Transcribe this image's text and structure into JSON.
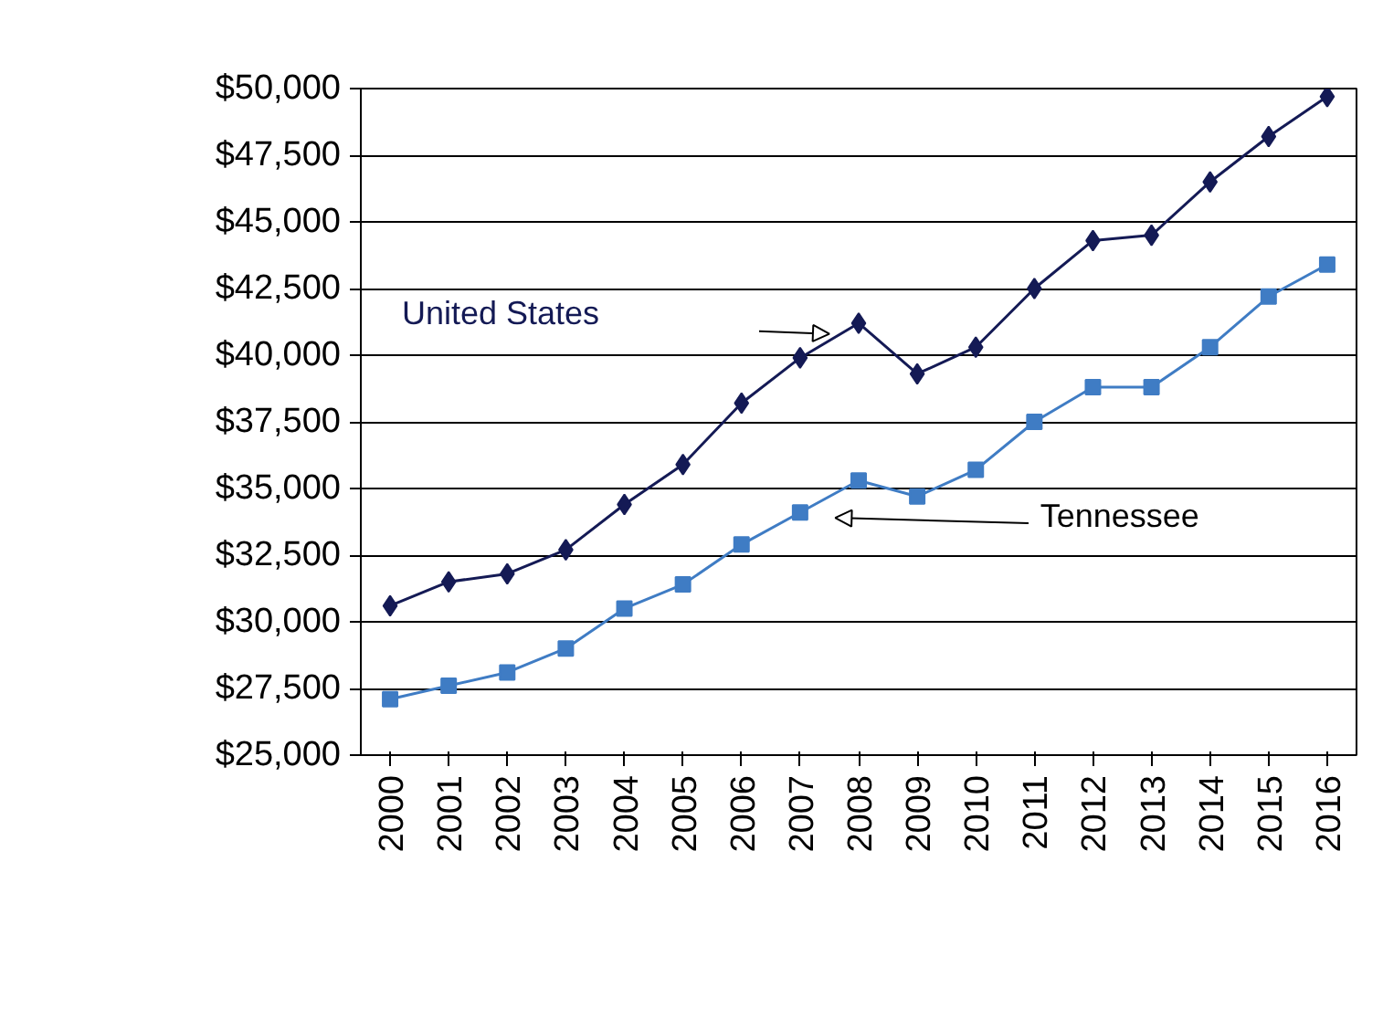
{
  "chart_data": {
    "type": "line",
    "categories": [
      "2000",
      "2001",
      "2002",
      "2003",
      "2004",
      "2005",
      "2006",
      "2007",
      "2008",
      "2009",
      "2010",
      "2011",
      "2012",
      "2013",
      "2014",
      "2015",
      "2016"
    ],
    "ylim": [
      25000,
      50000
    ],
    "yticks": [
      {
        "value": 25000,
        "label": "$25,000"
      },
      {
        "value": 27500,
        "label": "$27,500"
      },
      {
        "value": 30000,
        "label": "$30,000"
      },
      {
        "value": 32500,
        "label": "$32,500"
      },
      {
        "value": 35000,
        "label": "$35,000"
      },
      {
        "value": 37500,
        "label": "$37,500"
      },
      {
        "value": 40000,
        "label": "$40,000"
      },
      {
        "value": 42500,
        "label": "$42,500"
      },
      {
        "value": 45000,
        "label": "$45,000"
      },
      {
        "value": 47500,
        "label": "$47,500"
      },
      {
        "value": 50000,
        "label": "$50,000"
      }
    ],
    "grid": "y",
    "series": [
      {
        "name": "United States",
        "color": "#141a55",
        "marker": "diamond",
        "values": [
          30600,
          31500,
          31800,
          32700,
          34400,
          35900,
          38200,
          39900,
          41200,
          39300,
          40300,
          42500,
          44300,
          44500,
          46500,
          48200,
          49700
        ]
      },
      {
        "name": "Tennessee",
        "color": "#3f7cc4",
        "marker": "square",
        "values": [
          27100,
          27600,
          28100,
          29000,
          30500,
          31400,
          32900,
          34100,
          35300,
          34700,
          35700,
          37500,
          38800,
          38800,
          40300,
          42200,
          43400
        ]
      }
    ]
  }
}
